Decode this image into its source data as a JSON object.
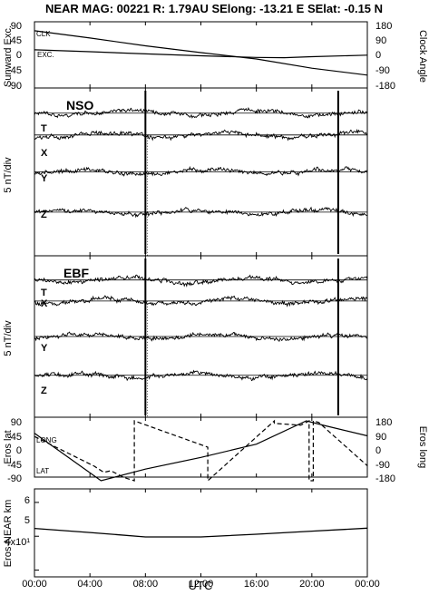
{
  "header": {
    "title": "NEAR MAG: 00221  R: 1.79AU  SElong:  -13.21 E  SElat:   -0.15 N"
  },
  "colors": {
    "background": "#ffffff",
    "ink": "#000000"
  },
  "chart_data": [
    {
      "panel": "sun-angle",
      "type": "line",
      "ylabel": "Sunward Exc.",
      "ylabel_right": "Clock Angle",
      "yticks": [
        "90",
        "45",
        "0",
        "-45",
        "-90"
      ],
      "yticks_right": [
        "180",
        "90",
        "0",
        "-90",
        "-180"
      ],
      "ylim": [
        -90,
        90
      ],
      "ylim_right": [
        -180,
        180
      ],
      "series": [
        {
          "name": "CLK",
          "axis": "right",
          "style": "solid",
          "x": [
            0,
            4,
            8,
            12,
            16,
            20,
            24
          ],
          "y": [
            158,
            112,
            63,
            20,
            -20,
            -78,
            -122
          ]
        },
        {
          "name": "EXC.",
          "axis": "left",
          "style": "solid",
          "x": [
            0,
            4,
            8,
            12,
            16,
            18,
            20,
            24
          ],
          "y": [
            19,
            13,
            6,
            0,
            -5,
            -6,
            -3,
            2
          ]
        }
      ]
    },
    {
      "panel": "nso",
      "type": "line",
      "label": "NSO",
      "ylabel": "5 nT/div",
      "traces": [
        "T",
        "X",
        "Y",
        "Z"
      ],
      "baseline_levels": [
        70,
        44,
        0,
        -48
      ],
      "spike_times": [
        8.0,
        21.9
      ]
    },
    {
      "panel": "ebf",
      "type": "line",
      "label": "EBF",
      "ylabel": "5 nT/div",
      "traces": [
        "T",
        "X",
        "Y",
        "Z"
      ],
      "baseline_levels": [
        70,
        44,
        0,
        -48
      ],
      "spike_times": [
        8.0,
        21.9
      ]
    },
    {
      "panel": "eros-position",
      "type": "line",
      "ylabel": "Eros lat",
      "ylabel_right": "Eros long",
      "yticks": [
        "90",
        "45",
        "0",
        "-45",
        "-90"
      ],
      "yticks_right": [
        "180",
        "90",
        "0",
        "-90",
        "-180"
      ],
      "ylim": [
        -90,
        90
      ],
      "ylim_right": [
        -180,
        180
      ],
      "series": [
        {
          "name": "LONG",
          "axis": "right",
          "style": "dashed",
          "x": [
            0,
            4.3,
            5.0,
            5.5,
            6.5,
            7.2,
            7.2,
            12.5,
            12.5,
            17.3,
            17.3,
            19.2,
            19.8,
            19.8,
            20.1,
            20.1,
            20.5,
            24.0
          ],
          "y": [
            86,
            -92,
            -130,
            -120,
            -162,
            -180,
            180,
            22,
            -180,
            180,
            165,
            154,
            180,
            -180,
            -180,
            180,
            170,
            -90
          ]
        },
        {
          "name": "LAT",
          "axis": "left",
          "style": "solid",
          "x": [
            0,
            4.8,
            8.0,
            12.0,
            16.0,
            19.6,
            21.0,
            24.0
          ],
          "y": [
            53,
            -90,
            -55,
            -20,
            20,
            90,
            75,
            45
          ]
        }
      ]
    },
    {
      "panel": "eros-near-distance",
      "type": "line",
      "ylabel": "Eros-NEAR km",
      "yticks": [
        "6",
        "5",
        "4x10¹"
      ],
      "ylim": [
        38,
        64
      ],
      "series": [
        {
          "name": "Eros-NEAR km",
          "style": "solid",
          "x": [
            0,
            4,
            8,
            12,
            16,
            20,
            24
          ],
          "y": [
            52.3,
            51.1,
            49.8,
            49.8,
            50.6,
            51.5,
            52.4
          ]
        }
      ]
    }
  ],
  "x_axis": {
    "label": "UTC",
    "range": [
      0,
      24
    ],
    "tick_values": [
      0,
      4,
      8,
      12,
      16,
      20,
      24
    ],
    "tick_labels": [
      "00:00",
      "04:00",
      "08:00",
      "12:00",
      "16:00",
      "20:00",
      "00:00"
    ]
  }
}
